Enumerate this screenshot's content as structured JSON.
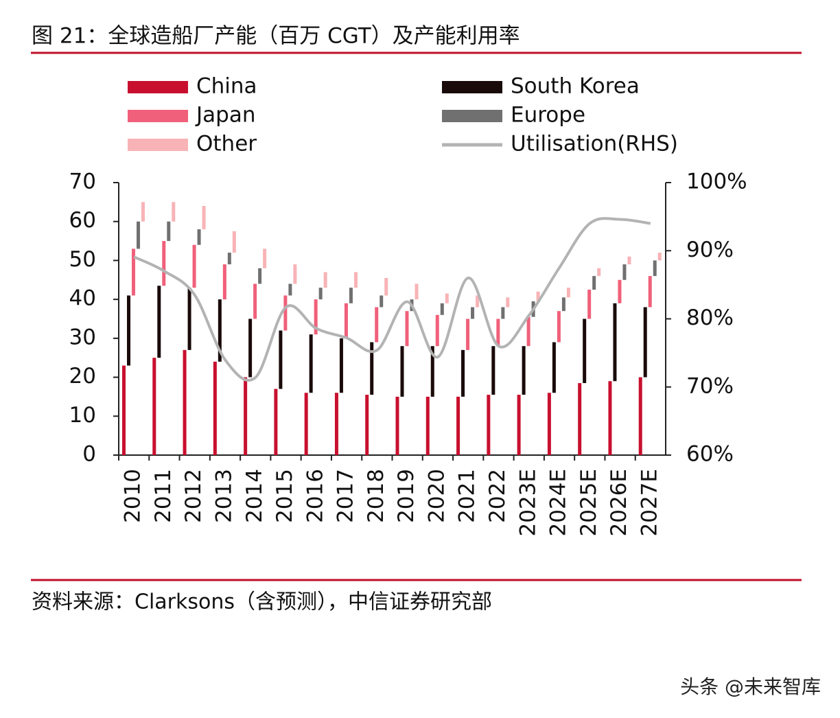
{
  "chart_data": {
    "type": "bar",
    "title": "图 21：全球造船厂产能（百万 CGT）及产能利用率",
    "categories": [
      "2010",
      "2011",
      "2012",
      "2013",
      "2014",
      "2015",
      "2016",
      "2017",
      "2018",
      "2019",
      "2020",
      "2021",
      "2022",
      "2023E",
      "2024E",
      "2025E",
      "2026E",
      "2027E"
    ],
    "stacked": true,
    "series": [
      {
        "name": "China",
        "color": "#c8102e",
        "values": [
          23,
          25,
          27,
          24,
          20,
          17,
          16,
          16,
          15.5,
          15,
          15,
          15,
          15.5,
          15.5,
          16,
          18.5,
          19,
          20
        ]
      },
      {
        "name": "South Korea",
        "color": "#1a0a0a",
        "values": [
          18,
          18.5,
          16,
          16,
          15,
          15,
          15,
          14,
          13.5,
          13,
          13,
          12,
          12.5,
          12.5,
          13,
          16.5,
          20,
          18
        ]
      },
      {
        "name": "Japan",
        "color": "#f0607a",
        "values": [
          12,
          11.5,
          11,
          9,
          9,
          9,
          9,
          9,
          9,
          9,
          8,
          8,
          7,
          7.5,
          8,
          7.5,
          6,
          8
        ]
      },
      {
        "name": "Europe",
        "color": "#707070",
        "values": [
          7,
          5,
          4,
          3,
          4,
          3,
          3,
          4,
          3,
          3,
          3,
          3,
          3,
          4,
          3.5,
          3.5,
          4,
          4
        ]
      },
      {
        "name": "Other",
        "color": "#f8b3b6",
        "values": [
          5,
          5,
          6,
          5.5,
          5,
          5,
          4,
          4,
          4.5,
          4,
          2.5,
          3,
          2.5,
          2.5,
          2.5,
          2,
          2,
          2
        ]
      },
      {
        "name": "Utilisation(RHS)",
        "type": "line",
        "axis": "y2",
        "color": "#b3b3b3",
        "values": [
          89.1,
          87,
          83.5,
          74,
          71.4,
          81.7,
          78.6,
          77.2,
          75.4,
          82.5,
          74.4,
          86,
          76,
          80.5,
          87.5,
          94,
          94.6,
          94
        ]
      }
    ],
    "ylim": [
      0,
      70
    ],
    "yticks": [
      0,
      10,
      20,
      30,
      40,
      50,
      60,
      70
    ],
    "y2lim": [
      60,
      100
    ],
    "y2ticks": [
      {
        "value": 60,
        "label": "60%"
      },
      {
        "value": 70,
        "label": "70%"
      },
      {
        "value": 80,
        "label": "80%"
      },
      {
        "value": 90,
        "label": "90%"
      },
      {
        "value": 100,
        "label": "100%"
      }
    ],
    "grid": false
  },
  "source": "资料来源：Clarksons（含预测），中信证券研究部",
  "watermark": "头条 @未来智库"
}
